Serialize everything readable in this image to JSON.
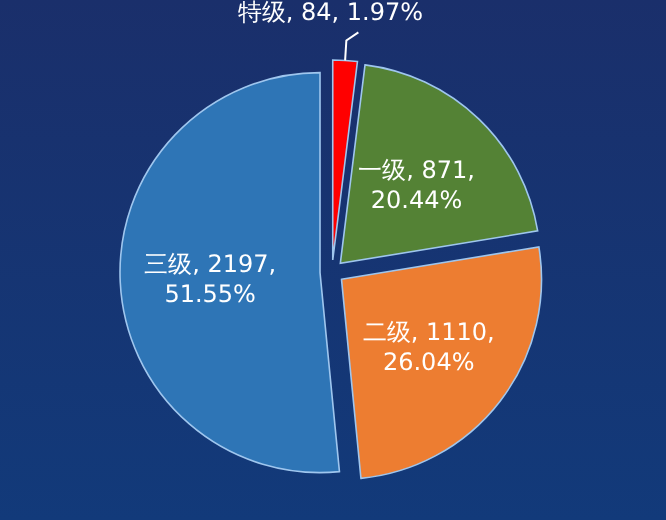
{
  "chart_data": {
    "type": "pie",
    "categories": [
      "特级",
      "一级",
      "二级",
      "三级"
    ],
    "values": [
      84,
      871,
      1110,
      2197
    ],
    "colors": [
      "#ff0000",
      "#548235",
      "#ed7d31",
      "#2e75b6"
    ],
    "value_labels": [
      "84, 1.97%",
      "871, 20.44%",
      "1110, 26.04%",
      "2197, 51.55%"
    ]
  }
}
